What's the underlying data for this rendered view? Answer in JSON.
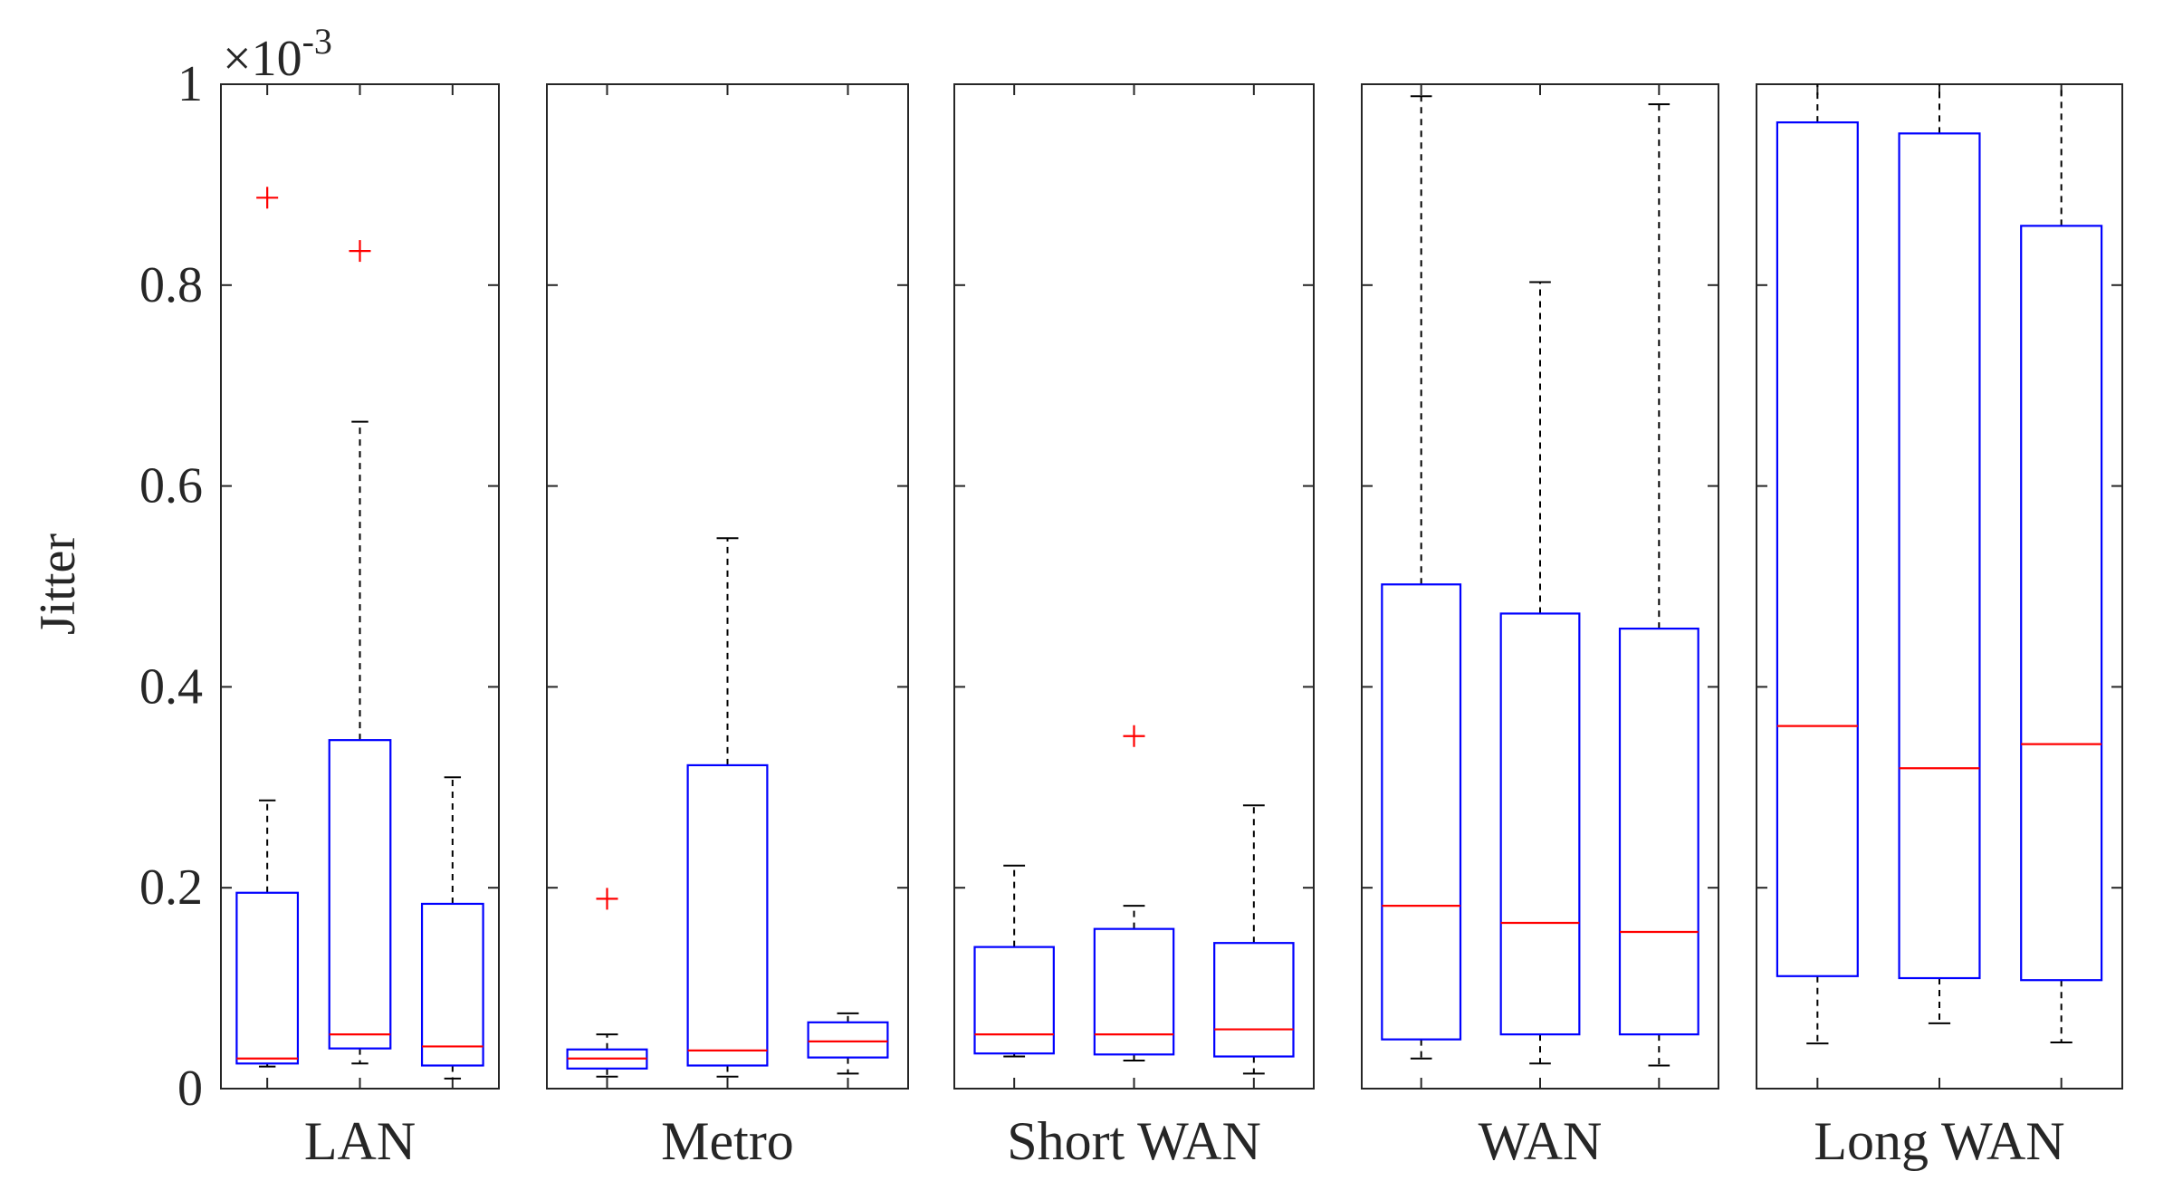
{
  "chart_data": {
    "type": "box",
    "ylabel": "Jitter",
    "y_exponent_label": "×10",
    "y_exponent_power": "-3",
    "ylim": [
      0,
      1
    ],
    "y_ticks": [
      0,
      0.2,
      0.4,
      0.6,
      0.8,
      1
    ],
    "y_tick_labels": [
      "0",
      "0.2",
      "0.4",
      "0.6",
      "0.8",
      "1"
    ],
    "whisker_clipped_above_axis": true,
    "colors": {
      "box": "#0000ff",
      "median": "#ff0000",
      "outlier": "#ff0000",
      "whisker": "#000000",
      "axes": "#262626"
    },
    "panels": [
      {
        "label": "LAN",
        "boxes": [
          {
            "whisker_low": 0.022,
            "q1": 0.025,
            "median": 0.03,
            "q3": 0.195,
            "whisker_high": 0.287,
            "outliers": [
              0.887
            ]
          },
          {
            "whisker_low": 0.025,
            "q1": 0.04,
            "median": 0.054,
            "q3": 0.347,
            "whisker_high": 0.664,
            "outliers": [
              0.834
            ]
          },
          {
            "whisker_low": 0.01,
            "q1": 0.023,
            "median": 0.042,
            "q3": 0.184,
            "whisker_high": 0.31,
            "outliers": []
          }
        ]
      },
      {
        "label": "Metro",
        "boxes": [
          {
            "whisker_low": 0.012,
            "q1": 0.02,
            "median": 0.03,
            "q3": 0.039,
            "whisker_high": 0.054,
            "outliers": [
              0.189
            ]
          },
          {
            "whisker_low": 0.012,
            "q1": 0.023,
            "median": 0.038,
            "q3": 0.322,
            "whisker_high": 0.548,
            "outliers": []
          },
          {
            "whisker_low": 0.015,
            "q1": 0.031,
            "median": 0.047,
            "q3": 0.066,
            "whisker_high": 0.075,
            "outliers": []
          }
        ]
      },
      {
        "label": "Short WAN",
        "boxes": [
          {
            "whisker_low": 0.032,
            "q1": 0.035,
            "median": 0.054,
            "q3": 0.141,
            "whisker_high": 0.222,
            "outliers": []
          },
          {
            "whisker_low": 0.028,
            "q1": 0.034,
            "median": 0.054,
            "q3": 0.159,
            "whisker_high": 0.182,
            "outliers": [
              0.351
            ]
          },
          {
            "whisker_low": 0.015,
            "q1": 0.032,
            "median": 0.059,
            "q3": 0.145,
            "whisker_high": 0.282,
            "outliers": []
          }
        ]
      },
      {
        "label": "WAN",
        "boxes": [
          {
            "whisker_low": 0.03,
            "q1": 0.049,
            "median": 0.182,
            "q3": 0.502,
            "whisker_high": 0.988,
            "outliers": []
          },
          {
            "whisker_low": 0.025,
            "q1": 0.054,
            "median": 0.165,
            "q3": 0.473,
            "whisker_high": 0.803,
            "outliers": []
          },
          {
            "whisker_low": 0.023,
            "q1": 0.054,
            "median": 0.156,
            "q3": 0.458,
            "whisker_high": 0.98,
            "outliers": []
          }
        ]
      },
      {
        "label": "Long WAN",
        "boxes": [
          {
            "whisker_low": 0.045,
            "q1": 0.112,
            "median": 0.361,
            "q3": 0.962,
            "whisker_high": 1.05,
            "outliers": []
          },
          {
            "whisker_low": 0.065,
            "q1": 0.11,
            "median": 0.319,
            "q3": 0.951,
            "whisker_high": 1.05,
            "outliers": []
          },
          {
            "whisker_low": 0.046,
            "q1": 0.108,
            "median": 0.343,
            "q3": 0.859,
            "whisker_high": 1.05,
            "outliers": []
          }
        ]
      }
    ]
  }
}
